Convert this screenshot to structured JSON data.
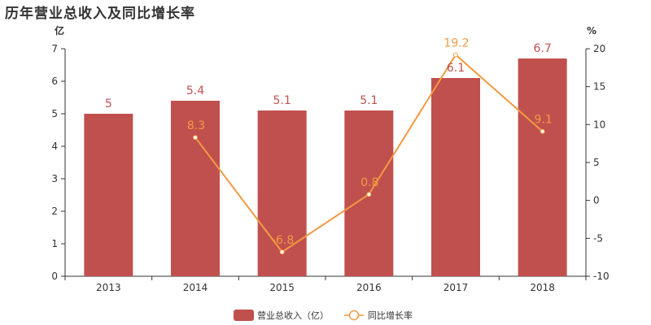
{
  "page": {
    "title": "历年营业总收入及同比增长率"
  },
  "chart_data": {
    "type": "bar",
    "title": "历年营业总收入及同比增长率",
    "categories": [
      "2013",
      "2014",
      "2015",
      "2016",
      "2017",
      "2018"
    ],
    "series": [
      {
        "name": "营业总收入（亿）",
        "type": "bar",
        "axis": "left",
        "values": [
          5,
          5.4,
          5.1,
          5.1,
          6.1,
          6.7
        ],
        "labels": [
          "5",
          "5.4",
          "5.1",
          "5.1",
          "6.1",
          "6.7"
        ],
        "color": "#c0504d"
      },
      {
        "name": "同比增长率",
        "type": "line",
        "axis": "right",
        "values": [
          null,
          8.3,
          -6.8,
          0.8,
          19.2,
          9.1
        ],
        "labels": [
          "",
          "8.3",
          "-6.8",
          "0.8",
          "19.2",
          "9.1"
        ],
        "color": "#f29a43"
      }
    ],
    "y_left": {
      "unit_label": "亿",
      "ylim": [
        0,
        7
      ],
      "ticks": [
        "0",
        "1",
        "2",
        "3",
        "4",
        "5",
        "6",
        "7"
      ]
    },
    "y_right": {
      "unit_label": "%",
      "ylim": [
        -10,
        20
      ],
      "ticks": [
        "-10",
        "-5",
        "0",
        "5",
        "10",
        "15",
        "20"
      ]
    },
    "grid": false,
    "legend_position": "bottom-center"
  }
}
